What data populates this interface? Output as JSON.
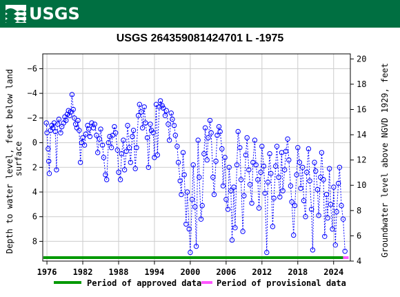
{
  "header": {
    "logo_text": "USGS"
  },
  "chart_data": {
    "type": "scatter",
    "title": "USGS 264359081424701 L  -1975",
    "ylabel_left": "Depth to water level, feet below land surface",
    "ylabel_right": "Groundwater level above NGVD 1929, feet",
    "xlim": [
      1975.3,
      2026.8
    ],
    "ylim_left": [
      -7.2,
      9.6
    ],
    "ylim_right": [
      4.0,
      20.4
    ],
    "x_ticks": [
      1976,
      1982,
      1988,
      1994,
      2000,
      2006,
      2012,
      2018,
      2024
    ],
    "y_ticks_left": [
      -6,
      -4,
      -2,
      0,
      2,
      4,
      6,
      8
    ],
    "y_ticks_right": [
      4,
      6,
      8,
      10,
      12,
      14,
      16,
      18,
      20
    ],
    "grid": true,
    "colors": {
      "points": "#0000ff",
      "approved": "#009900",
      "provisional": "#ff55ff",
      "grid": "#cccccc"
    },
    "approved_period": [
      1975.4,
      2025.6
    ],
    "provisional_period": [
      2025.6,
      2026.5
    ],
    "legend": [
      {
        "label": "Period of approved data",
        "color": "#009900"
      },
      {
        "label": "Period of provisional data",
        "color": "#ff55ff"
      }
    ],
    "series": [
      {
        "values": [
          [
            1975.9,
            -1.6
          ],
          [
            1976.0,
            -0.8
          ],
          [
            1976.2,
            0.5
          ],
          [
            1976.3,
            1.5
          ],
          [
            1976.4,
            2.5
          ],
          [
            1976.6,
            -1.0
          ],
          [
            1976.8,
            -1.4
          ],
          [
            1977.0,
            -1.2
          ],
          [
            1977.2,
            -1.6
          ],
          [
            1977.4,
            -0.9
          ],
          [
            1977.6,
            2.2
          ],
          [
            1977.8,
            -1.5
          ],
          [
            1978.0,
            -1.9
          ],
          [
            1978.3,
            -0.8
          ],
          [
            1978.5,
            -1.3
          ],
          [
            1978.8,
            -1.6
          ],
          [
            1979.0,
            -2.1
          ],
          [
            1979.2,
            -1.8
          ],
          [
            1979.4,
            -2.3
          ],
          [
            1979.6,
            -2.6
          ],
          [
            1979.8,
            -2.2
          ],
          [
            1980.0,
            -2.5
          ],
          [
            1980.2,
            -3.9
          ],
          [
            1980.4,
            -2.7
          ],
          [
            1980.6,
            -2.0
          ],
          [
            1980.8,
            -1.5
          ],
          [
            1981.0,
            -1.2
          ],
          [
            1981.2,
            -1.8
          ],
          [
            1981.4,
            -1.0
          ],
          [
            1981.6,
            1.6
          ],
          [
            1981.8,
            0.0
          ],
          [
            1982.0,
            -0.4
          ],
          [
            1982.3,
            0.2
          ],
          [
            1982.5,
            -0.7
          ],
          [
            1982.8,
            -1.4
          ],
          [
            1983.0,
            -1.1
          ],
          [
            1983.2,
            -0.5
          ],
          [
            1983.5,
            -1.6
          ],
          [
            1983.8,
            -1.2
          ],
          [
            1984.0,
            -1.5
          ],
          [
            1984.3,
            -0.6
          ],
          [
            1984.5,
            0.8
          ],
          [
            1984.8,
            -0.3
          ],
          [
            1985.0,
            -1.1
          ],
          [
            1985.3,
            0.2
          ],
          [
            1985.5,
            1.2
          ],
          [
            1985.8,
            2.6
          ],
          [
            1986.0,
            3.0
          ],
          [
            1986.3,
            0.0
          ],
          [
            1986.5,
            -0.5
          ],
          [
            1986.8,
            0.4
          ],
          [
            1987.0,
            -0.6
          ],
          [
            1987.3,
            -1.3
          ],
          [
            1987.5,
            -0.8
          ],
          [
            1987.8,
            0.6
          ],
          [
            1988.0,
            2.4
          ],
          [
            1988.3,
            3.0
          ],
          [
            1988.5,
            0.9
          ],
          [
            1988.8,
            -0.2
          ],
          [
            1989.0,
            2.2
          ],
          [
            1989.3,
            0.7
          ],
          [
            1989.5,
            -1.4
          ],
          [
            1989.8,
            0.4
          ],
          [
            1990.0,
            1.6
          ],
          [
            1990.3,
            -0.5
          ],
          [
            1990.5,
            -1.0
          ],
          [
            1990.8,
            2.1
          ],
          [
            1991.0,
            0.4
          ],
          [
            1991.3,
            -2.2
          ],
          [
            1991.5,
            -3.1
          ],
          [
            1991.8,
            -2.5
          ],
          [
            1992.0,
            -1.2
          ],
          [
            1992.3,
            -2.9
          ],
          [
            1992.5,
            -1.6
          ],
          [
            1992.8,
            -0.4
          ],
          [
            1993.0,
            2.0
          ],
          [
            1993.3,
            -1.5
          ],
          [
            1993.5,
            -1.0
          ],
          [
            1993.8,
            -0.8
          ],
          [
            1994.0,
            1.2
          ],
          [
            1994.3,
            -3.1
          ],
          [
            1994.5,
            1.0
          ],
          [
            1994.8,
            -2.9
          ],
          [
            1995.0,
            -3.4
          ],
          [
            1995.3,
            -3.0
          ],
          [
            1995.5,
            -2.8
          ],
          [
            1995.8,
            -2.2
          ],
          [
            1996.0,
            -2.6
          ],
          [
            1996.3,
            -1.5
          ],
          [
            1996.5,
            -0.2
          ],
          [
            1996.8,
            -2.4
          ],
          [
            1997.0,
            -1.9
          ],
          [
            1997.3,
            -1.4
          ],
          [
            1997.5,
            -0.6
          ],
          [
            1997.8,
            0.3
          ],
          [
            1998.0,
            1.6
          ],
          [
            1998.3,
            3.1
          ],
          [
            1998.5,
            4.2
          ],
          [
            1998.8,
            0.8
          ],
          [
            1999.0,
            2.6
          ],
          [
            1999.3,
            6.6
          ],
          [
            1999.5,
            4.0
          ],
          [
            1999.8,
            7.0
          ],
          [
            2000.0,
            8.9
          ],
          [
            2000.3,
            4.6
          ],
          [
            2000.5,
            1.8
          ],
          [
            2000.8,
            5.2
          ],
          [
            2001.0,
            8.4
          ],
          [
            2001.3,
            -0.2
          ],
          [
            2001.5,
            2.8
          ],
          [
            2001.8,
            6.2
          ],
          [
            2002.0,
            5.1
          ],
          [
            2002.3,
            0.9
          ],
          [
            2002.5,
            -1.2
          ],
          [
            2002.8,
            1.4
          ],
          [
            2003.0,
            -0.4
          ],
          [
            2003.3,
            -1.8
          ],
          [
            2003.5,
            -0.8
          ],
          [
            2003.8,
            2.8
          ],
          [
            2004.0,
            4.2
          ],
          [
            2004.3,
            1.5
          ],
          [
            2004.5,
            -0.6
          ],
          [
            2004.8,
            -1.3
          ],
          [
            2005.0,
            -0.9
          ],
          [
            2005.3,
            0.5
          ],
          [
            2005.5,
            3.5
          ],
          [
            2005.8,
            1.2
          ],
          [
            2006.0,
            4.6
          ],
          [
            2006.3,
            5.4
          ],
          [
            2006.5,
            2.0
          ],
          [
            2006.8,
            3.9
          ],
          [
            2007.0,
            7.9
          ],
          [
            2007.3,
            3.6
          ],
          [
            2007.5,
            6.9
          ],
          [
            2007.8,
            1.8
          ],
          [
            2008.0,
            -0.9
          ],
          [
            2008.3,
            0.4
          ],
          [
            2008.5,
            3.0
          ],
          [
            2008.8,
            7.2
          ],
          [
            2009.0,
            4.3
          ],
          [
            2009.3,
            1.0
          ],
          [
            2009.5,
            -0.4
          ],
          [
            2009.8,
            2.2
          ],
          [
            2010.0,
            3.4
          ],
          [
            2010.3,
            4.9
          ],
          [
            2010.5,
            1.6
          ],
          [
            2010.8,
            -0.2
          ],
          [
            2011.0,
            1.8
          ],
          [
            2011.3,
            3.0
          ],
          [
            2011.5,
            5.3
          ],
          [
            2011.8,
            2.4
          ],
          [
            2012.0,
            0.3
          ],
          [
            2012.3,
            1.9
          ],
          [
            2012.5,
            4.1
          ],
          [
            2012.8,
            8.9
          ],
          [
            2013.0,
            3.2
          ],
          [
            2013.3,
            0.9
          ],
          [
            2013.5,
            2.5
          ],
          [
            2013.8,
            6.8
          ],
          [
            2014.0,
            4.5
          ],
          [
            2014.3,
            1.9
          ],
          [
            2014.5,
            0.3
          ],
          [
            2014.8,
            2.8
          ],
          [
            2015.0,
            4.4
          ],
          [
            2015.3,
            0.8
          ],
          [
            2015.5,
            3.9
          ],
          [
            2015.8,
            2.2
          ],
          [
            2016.0,
            0.7
          ],
          [
            2016.3,
            -0.3
          ],
          [
            2016.5,
            1.4
          ],
          [
            2016.8,
            3.5
          ],
          [
            2017.0,
            4.8
          ],
          [
            2017.3,
            7.5
          ],
          [
            2017.5,
            5.1
          ],
          [
            2017.8,
            2.6
          ],
          [
            2018.0,
            0.4
          ],
          [
            2018.3,
            1.6
          ],
          [
            2018.5,
            3.7
          ],
          [
            2018.8,
            2.0
          ],
          [
            2019.0,
            4.7
          ],
          [
            2019.3,
            6.0
          ],
          [
            2019.5,
            2.4
          ],
          [
            2019.8,
            0.5
          ],
          [
            2020.0,
            3.1
          ],
          [
            2020.3,
            5.4
          ],
          [
            2020.5,
            8.7
          ],
          [
            2020.8,
            1.6
          ],
          [
            2021.0,
            2.3
          ],
          [
            2021.3,
            3.8
          ],
          [
            2021.5,
            5.9
          ],
          [
            2021.8,
            2.8
          ],
          [
            2022.0,
            0.8
          ],
          [
            2022.3,
            3.0
          ],
          [
            2022.5,
            7.6
          ],
          [
            2022.8,
            4.2
          ],
          [
            2023.0,
            6.1
          ],
          [
            2023.3,
            2.1
          ],
          [
            2023.5,
            5.0
          ],
          [
            2023.8,
            7.0
          ],
          [
            2024.0,
            3.6
          ],
          [
            2024.3,
            8.3
          ],
          [
            2024.5,
            5.6
          ],
          [
            2024.8,
            3.3
          ],
          [
            2025.0,
            2.0
          ],
          [
            2025.3,
            5.1
          ],
          [
            2025.6,
            6.2
          ],
          [
            2025.9,
            8.8
          ]
        ]
      }
    ]
  }
}
